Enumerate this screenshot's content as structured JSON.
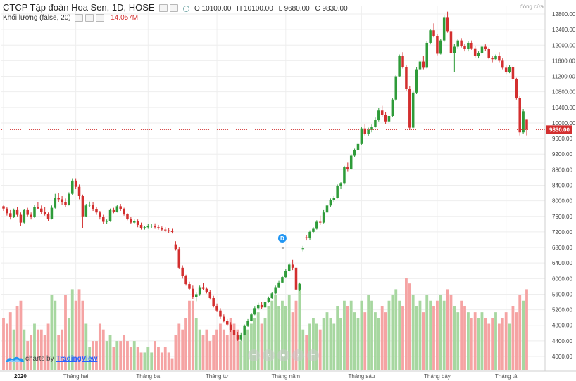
{
  "legend": {
    "title": "CTCP Tập đoàn Hoa Sen, 1D, HOSE",
    "open": "O 10100.00",
    "high": "H 10100.00",
    "low": "L 9680.00",
    "close": "C 9830.00",
    "volume_label": "Khối lượng (false, 20)",
    "volume_value": "14.057M",
    "status": "đóng cửa"
  },
  "watermark": {
    "prefix": "charts by",
    "brand": "TradingView"
  },
  "colors": {
    "up": "#2e9b39",
    "down": "#d32f2f",
    "vol_up": "#a7d7a0",
    "vol_down": "#f5a3a3",
    "grid": "#eeeeee"
  },
  "chart_data": {
    "type": "candlestick",
    "ylim": [
      3800,
      12850
    ],
    "y_ticks": [
      4000,
      4400,
      4800,
      5200,
      5600,
      6000,
      6400,
      6800,
      7200,
      7600,
      8000,
      8400,
      8800,
      9200,
      9600,
      10000,
      10400,
      10800,
      11200,
      11600,
      12000,
      12400,
      12800
    ],
    "y_tick_labels": [
      "4000.00",
      "4400.00",
      "4800.00",
      "5200.00",
      "5600.00",
      "6000.00",
      "6400.00",
      "6800.00",
      "7200.00",
      "7600.00",
      "8000.00",
      "8400.00",
      "8800.00",
      "9200.00",
      "9600.00",
      "10000.00",
      "10400.00",
      "10800.00",
      "11200.00",
      "11600.00",
      "12000.00",
      "12400.00",
      "12800.00"
    ],
    "x_labels": [
      "2020",
      "Tháng hai",
      "Tháng ba",
      "Tháng tư",
      "Tháng năm",
      "Tháng sáu",
      "Tháng bảy",
      "Tháng tá"
    ],
    "x_label_bars": [
      0,
      21,
      42,
      62,
      82,
      104,
      126,
      146
    ],
    "last_price": 9830,
    "last_price_label": "9830.00",
    "dividend_marker": {
      "label": "D",
      "bar": 81
    },
    "volume_max": 16,
    "candles": [
      [
        7860,
        7880,
        7740,
        7800,
        9
      ],
      [
        7800,
        7840,
        7620,
        7680,
        8
      ],
      [
        7680,
        7760,
        7520,
        7580,
        10
      ],
      [
        7580,
        7800,
        7560,
        7760,
        7
      ],
      [
        7760,
        7840,
        7600,
        7640,
        11
      ],
      [
        7640,
        7700,
        7360,
        7440,
        12
      ],
      [
        7440,
        7780,
        7420,
        7760,
        7
      ],
      [
        7760,
        7820,
        7600,
        7640,
        5
      ],
      [
        7640,
        7700,
        7520,
        7580,
        6
      ],
      [
        7580,
        7900,
        7560,
        7840,
        8
      ],
      [
        7840,
        7960,
        7780,
        7800,
        7
      ],
      [
        7800,
        7880,
        7660,
        7720,
        7
      ],
      [
        7720,
        7840,
        7620,
        7660,
        6
      ],
      [
        7660,
        7700,
        7480,
        7540,
        8
      ],
      [
        7540,
        7880,
        7520,
        7820,
        13
      ],
      [
        7820,
        8180,
        7800,
        8080,
        12
      ],
      [
        8080,
        8200,
        7960,
        8040,
        6
      ],
      [
        8040,
        8120,
        7900,
        7960,
        7
      ],
      [
        7960,
        8060,
        7840,
        7900,
        13
      ],
      [
        7900,
        8220,
        7880,
        8180,
        9
      ],
      [
        8180,
        8580,
        8140,
        8520,
        14
      ],
      [
        8520,
        8580,
        8300,
        8360,
        12
      ],
      [
        8360,
        8420,
        8040,
        8120,
        14
      ],
      [
        8120,
        8160,
        7300,
        7600,
        12
      ],
      [
        7600,
        7920,
        7580,
        7880,
        8
      ],
      [
        7880,
        7980,
        7840,
        7900,
        4
      ],
      [
        7900,
        7960,
        7740,
        7780,
        5
      ],
      [
        7780,
        7840,
        7640,
        7700,
        5
      ],
      [
        7700,
        7740,
        7520,
        7580,
        8
      ],
      [
        7580,
        7640,
        7400,
        7460,
        7
      ],
      [
        7460,
        7520,
        7400,
        7480,
        5
      ],
      [
        7480,
        7800,
        7460,
        7760,
        6
      ],
      [
        7760,
        7820,
        7680,
        7720,
        4
      ],
      [
        7720,
        7900,
        7700,
        7860,
        5
      ],
      [
        7860,
        7920,
        7740,
        7780,
        5
      ],
      [
        7780,
        7820,
        7620,
        7660,
        6
      ],
      [
        7660,
        7680,
        7500,
        7540,
        5
      ],
      [
        7540,
        7580,
        7400,
        7440,
        4
      ],
      [
        7440,
        7520,
        7400,
        7480,
        5
      ],
      [
        7480,
        7520,
        7320,
        7380,
        4
      ],
      [
        7380,
        7440,
        7260,
        7300,
        3
      ],
      [
        7300,
        7360,
        7260,
        7320,
        3
      ],
      [
        7320,
        7400,
        7280,
        7360,
        4
      ],
      [
        7360,
        7400,
        7300,
        7360,
        3
      ],
      [
        7360,
        7420,
        7280,
        7320,
        5
      ],
      [
        7320,
        7380,
        7260,
        7300,
        4
      ],
      [
        7300,
        7340,
        7220,
        7260,
        3
      ],
      [
        7260,
        7320,
        7200,
        7240,
        4
      ],
      [
        7240,
        7300,
        7180,
        7220,
        3
      ],
      [
        7220,
        7280,
        7160,
        7200,
        2
      ],
      [
        6880,
        6960,
        6720,
        6760,
        6
      ],
      [
        6760,
        6800,
        6260,
        6280,
        8
      ],
      [
        6280,
        6340,
        6000,
        6060,
        7
      ],
      [
        6060,
        6100,
        5820,
        5860,
        9
      ],
      [
        5860,
        5920,
        5700,
        5740,
        12
      ],
      [
        5740,
        5820,
        5480,
        5520,
        12
      ],
      [
        5520,
        5640,
        5420,
        5600,
        9
      ],
      [
        5600,
        5820,
        5560,
        5780,
        7
      ],
      [
        5780,
        5880,
        5700,
        5740,
        6
      ],
      [
        5740,
        5780,
        5620,
        5660,
        7
      ],
      [
        5660,
        5700,
        5460,
        5500,
        5
      ],
      [
        5500,
        5560,
        5260,
        5300,
        6
      ],
      [
        5300,
        5360,
        5140,
        5180,
        7
      ],
      [
        5180,
        5240,
        4960,
        5020,
        8
      ],
      [
        5020,
        5080,
        4880,
        4920,
        7
      ],
      [
        4920,
        4960,
        4780,
        4820,
        6
      ],
      [
        4820,
        4880,
        4620,
        4680,
        9
      ],
      [
        4680,
        4760,
        4520,
        4560,
        8
      ],
      [
        4560,
        4620,
        4400,
        4440,
        7
      ],
      [
        4440,
        4600,
        4400,
        4560,
        5
      ],
      [
        4560,
        4820,
        4540,
        4780,
        6
      ],
      [
        4780,
        4960,
        4760,
        4920,
        7
      ],
      [
        4920,
        5120,
        4900,
        5080,
        8
      ],
      [
        5080,
        5280,
        5060,
        5240,
        9
      ],
      [
        5240,
        5380,
        5200,
        5320,
        10
      ],
      [
        5320,
        5400,
        5220,
        5260,
        8
      ],
      [
        5260,
        5460,
        5240,
        5400,
        9
      ],
      [
        5400,
        5540,
        5380,
        5500,
        11
      ],
      [
        5500,
        5660,
        5480,
        5620,
        12
      ],
      [
        5620,
        5820,
        5600,
        5780,
        13
      ],
      [
        5780,
        5940,
        5760,
        5900,
        11
      ],
      [
        5900,
        6080,
        5880,
        6040,
        12
      ],
      [
        6040,
        6240,
        6020,
        6200,
        11
      ],
      [
        6200,
        6400,
        6180,
        6360,
        13
      ],
      [
        6360,
        6480,
        6220,
        6280,
        10
      ],
      [
        6280,
        6320,
        5680,
        5720,
        12
      ],
      [
        5720,
        5900,
        5680,
        5860,
        15
      ],
      [
        6760,
        6840,
        6700,
        6780,
        7
      ],
      [
        7060,
        7120,
        6980,
        7040,
        6
      ],
      [
        7040,
        7240,
        7000,
        7200,
        8
      ],
      [
        7200,
        7320,
        7160,
        7280,
        9
      ],
      [
        7280,
        7500,
        7260,
        7460,
        8
      ],
      [
        7460,
        7620,
        7380,
        7440,
        7
      ],
      [
        7440,
        7760,
        7420,
        7700,
        9
      ],
      [
        7700,
        7920,
        7680,
        7880,
        10
      ],
      [
        7880,
        8060,
        7840,
        8020,
        9
      ],
      [
        8020,
        8120,
        7960,
        8080,
        8
      ],
      [
        8080,
        8420,
        8060,
        8380,
        11
      ],
      [
        8380,
        8480,
        8300,
        8440,
        9
      ],
      [
        8440,
        8900,
        8420,
        8860,
        12
      ],
      [
        8860,
        8980,
        8760,
        8820,
        11
      ],
      [
        8820,
        9200,
        8800,
        9160,
        12
      ],
      [
        9160,
        9340,
        9120,
        9300,
        10
      ],
      [
        9300,
        9520,
        9280,
        9460,
        9
      ],
      [
        9460,
        9900,
        9440,
        9860,
        12
      ],
      [
        9860,
        9980,
        9680,
        9720,
        10
      ],
      [
        9720,
        9880,
        9660,
        9820,
        13
      ],
      [
        9820,
        9960,
        9760,
        9900,
        12
      ],
      [
        9900,
        10140,
        9880,
        10080,
        10
      ],
      [
        10080,
        10380,
        10040,
        10320,
        9
      ],
      [
        10320,
        10440,
        10160,
        10200,
        11
      ],
      [
        10200,
        10280,
        9980,
        10040,
        10
      ],
      [
        10040,
        10220,
        9960,
        10180,
        12
      ],
      [
        10180,
        10640,
        10160,
        10600,
        13
      ],
      [
        10600,
        11240,
        10580,
        11200,
        14
      ],
      [
        11200,
        11760,
        11180,
        11720,
        12
      ],
      [
        11720,
        11820,
        11400,
        11440,
        11
      ],
      [
        11440,
        11480,
        10820,
        10880,
        16
      ],
      [
        10880,
        10940,
        9820,
        9880,
        15
      ],
      [
        9880,
        10840,
        9860,
        10780,
        13
      ],
      [
        10780,
        11440,
        10740,
        11380,
        11
      ],
      [
        11380,
        11620,
        11340,
        11580,
        12
      ],
      [
        11580,
        11720,
        11380,
        11420,
        10
      ],
      [
        11420,
        12100,
        11400,
        12060,
        13
      ],
      [
        12060,
        12420,
        12020,
        12380,
        12
      ],
      [
        12380,
        12560,
        12200,
        12240,
        11
      ],
      [
        12240,
        12280,
        11740,
        11780,
        12
      ],
      [
        11780,
        12160,
        11760,
        12120,
        13
      ],
      [
        12120,
        12760,
        12080,
        12720,
        12
      ],
      [
        12720,
        12860,
        12320,
        12360,
        14
      ],
      [
        12360,
        12420,
        11760,
        11800,
        13
      ],
      [
        11800,
        12040,
        11300,
        11960,
        11
      ],
      [
        11960,
        12160,
        11920,
        12120,
        10
      ],
      [
        12120,
        12180,
        11940,
        11980,
        12
      ],
      [
        11980,
        12040,
        11840,
        11900,
        11
      ],
      [
        11900,
        12100,
        11840,
        12060,
        10
      ],
      [
        12060,
        12120,
        11880,
        11920,
        9
      ],
      [
        11920,
        11980,
        11680,
        11720,
        10
      ],
      [
        11720,
        11840,
        11660,
        11800,
        9
      ],
      [
        11800,
        12000,
        11760,
        11960,
        10
      ],
      [
        11960,
        12020,
        11860,
        11900,
        9
      ],
      [
        11900,
        11940,
        11640,
        11680,
        8
      ],
      [
        11680,
        11720,
        11560,
        11640,
        9
      ],
      [
        11640,
        11760,
        11620,
        11720,
        10
      ],
      [
        11720,
        11820,
        11560,
        11600,
        8
      ],
      [
        11600,
        11660,
        11380,
        11420,
        9
      ],
      [
        11420,
        11480,
        11260,
        11300,
        10
      ],
      [
        11300,
        11480,
        11280,
        11440,
        8
      ],
      [
        11440,
        11480,
        11080,
        11120,
        11
      ],
      [
        11120,
        11160,
        10600,
        10640,
        10
      ],
      [
        10640,
        10700,
        9680,
        9760,
        13
      ],
      [
        9760,
        10360,
        9720,
        10300,
        12
      ],
      [
        10100,
        10100,
        9680,
        9830,
        14
      ]
    ]
  }
}
